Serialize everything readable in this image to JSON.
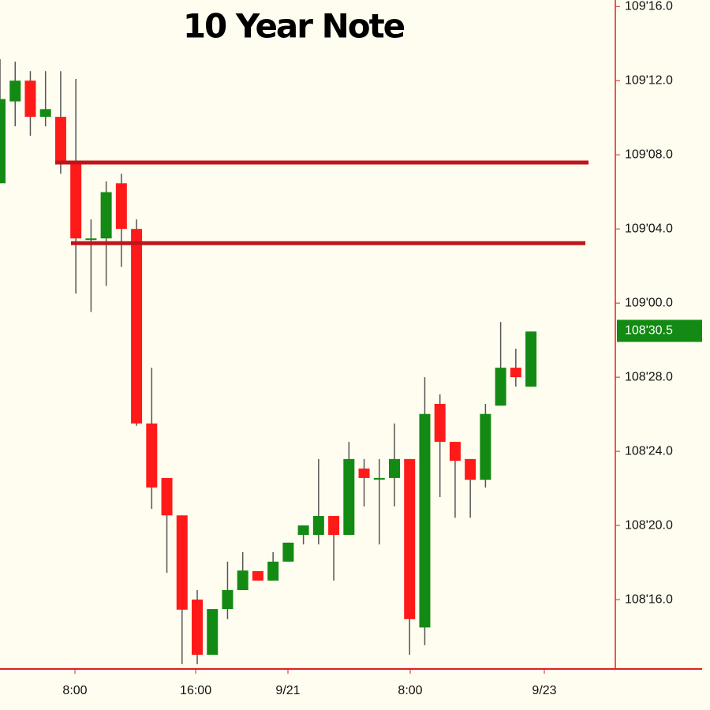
{
  "chart_data": {
    "type": "candlestick",
    "title": "10 Year Note",
    "up_color": "#138a13",
    "down_color": "#ff1a1a",
    "level_color": "#c0141c",
    "levels": [
      109.237,
      109.101
    ],
    "current_price": {
      "value": 108.953125,
      "label": "108'30.5"
    },
    "xlim": [
      0,
      40.56
    ],
    "xticks": [
      {
        "value": 4.94,
        "label": "8:00"
      },
      {
        "value": 12.9,
        "label": "16:00"
      },
      {
        "value": 18.98,
        "label": "9/21"
      },
      {
        "value": 27.04,
        "label": "8:00"
      },
      {
        "value": 35.88,
        "label": "9/23"
      }
    ],
    "ylim": [
      108.383,
      109.511
    ],
    "yticks": [
      {
        "value": 108.5,
        "label": "108'16.0"
      },
      {
        "value": 108.625,
        "label": "108'20.0"
      },
      {
        "value": 108.75,
        "label": "108'24.0"
      },
      {
        "value": 108.875,
        "label": "108'28.0"
      },
      {
        "value": 109.0,
        "label": "109'00.0"
      },
      {
        "value": 109.125,
        "label": "109'04.0"
      },
      {
        "value": 109.25,
        "label": "109'08.0"
      },
      {
        "value": 109.375,
        "label": "109'12.0"
      },
      {
        "value": 109.5,
        "label": "109'16.0"
      }
    ],
    "x": [
      0,
      1,
      2,
      3,
      4,
      5,
      6,
      7,
      8,
      9,
      10,
      11,
      12,
      13,
      14,
      15,
      16,
      17,
      18,
      19,
      20,
      21,
      22,
      23,
      24,
      25,
      26,
      27,
      28,
      29,
      30,
      31,
      32,
      33,
      34,
      35
    ],
    "open": [
      109.202,
      109.34,
      109.375,
      109.314,
      109.314,
      109.234,
      109.109,
      109.109,
      109.202,
      109.125,
      108.797,
      108.705,
      108.642,
      108.5,
      108.407,
      108.484,
      108.516,
      108.548,
      108.532,
      108.564,
      108.609,
      108.609,
      108.641,
      108.609,
      108.721,
      108.705,
      108.705,
      108.737,
      108.453,
      108.83,
      108.766,
      108.737,
      108.702,
      108.827,
      108.891,
      108.859
    ],
    "high": [
      109.411,
      109.407,
      109.391,
      109.391,
      109.391,
      109.378,
      109.141,
      109.205,
      109.218,
      109.141,
      108.891,
      108.705,
      108.642,
      108.516,
      108.484,
      108.564,
      108.58,
      108.548,
      108.58,
      108.596,
      108.625,
      108.737,
      108.641,
      108.766,
      108.737,
      108.737,
      108.797,
      108.737,
      108.875,
      108.846,
      108.766,
      108.737,
      108.83,
      108.968,
      108.923,
      108.952
    ],
    "low": [
      109.202,
      109.298,
      109.282,
      109.298,
      109.218,
      109.016,
      108.985,
      109.029,
      109.061,
      108.793,
      108.653,
      108.545,
      108.391,
      108.391,
      108.407,
      108.467,
      108.516,
      108.532,
      108.532,
      108.564,
      108.593,
      108.593,
      108.532,
      108.609,
      108.657,
      108.593,
      108.657,
      108.407,
      108.423,
      108.673,
      108.638,
      108.638,
      108.689,
      108.827,
      108.859,
      108.859
    ],
    "close": [
      109.344,
      109.375,
      109.314,
      109.327,
      109.234,
      109.109,
      109.109,
      109.187,
      109.125,
      108.797,
      108.689,
      108.642,
      108.483,
      108.407,
      108.484,
      108.516,
      108.549,
      108.532,
      108.564,
      108.596,
      108.625,
      108.641,
      108.609,
      108.737,
      108.705,
      108.705,
      108.737,
      108.467,
      108.813,
      108.766,
      108.734,
      108.702,
      108.813,
      108.891,
      108.875,
      108.952
    ]
  }
}
